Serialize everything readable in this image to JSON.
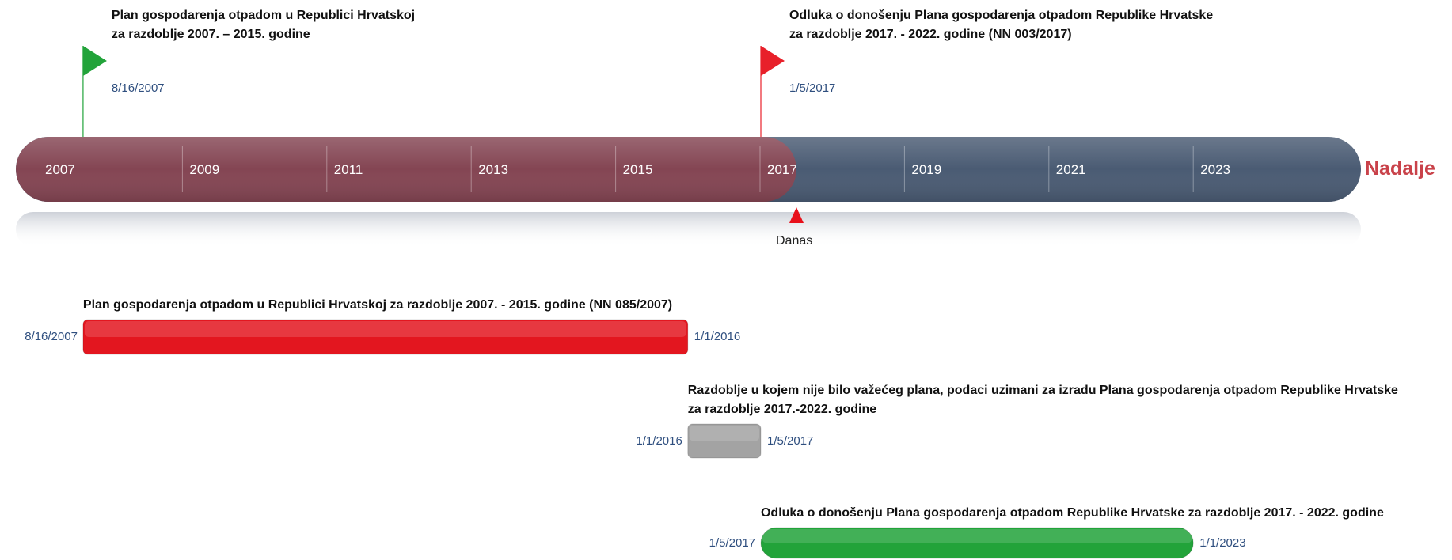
{
  "axis": {
    "years": [
      "2007",
      "2009",
      "2011",
      "2013",
      "2015",
      "2017",
      "2019",
      "2021",
      "2023"
    ],
    "end_label": "Nadalje",
    "today_label": "Danas"
  },
  "milestones": [
    {
      "label": "Plan gospodarenja otpadom u Republici Hrvatskoj za razdoblje 2007. – 2015. godine",
      "date": "8/16/2007",
      "color": "#22a33a"
    },
    {
      "label": "Odluka o donošenju Plana gospodarenja otpadom Republike Hrvatske za razdoblje 2017. - 2022. godine (NN 003/2017)",
      "date": "1/5/2017",
      "color": "#e8202a"
    }
  ],
  "tasks": [
    {
      "label": "Plan gospodarenja otpadom u Republici Hrvatskoj za razdoblje 2007. - 2015. godine (NN 085/2007)",
      "start": "8/16/2007",
      "end": "1/1/2016",
      "color": "#e3161f"
    },
    {
      "label": "Razdoblje u kojem nije bilo važećeg plana, podaci uzimani za izradu Plana gospodarenja otpadom Republike Hrvatske za razdoblje 2017.-2022. godine",
      "start": "1/1/2016",
      "end": "1/5/2017",
      "color": "#a3a3a3"
    },
    {
      "label": "Odluka o donošenju Plana gospodarenja otpadom Republike Hrvatske za razdoblje 2017. - 2022. godine",
      "start": "1/5/2017",
      "end": "1/1/2023",
      "color": "#22a33a"
    }
  ]
}
